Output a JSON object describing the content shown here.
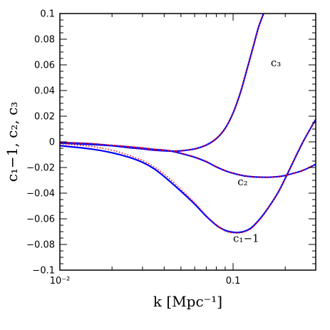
{
  "chart_data": {
    "type": "line",
    "xlabel": "k [Mpc⁻¹]",
    "ylabel": "c₁−1, c₂, c₃",
    "x_scale": "log",
    "xlim": [
      0.01,
      0.3
    ],
    "ylim": [
      -0.1,
      0.1
    ],
    "grid": false,
    "x_ticks": [
      {
        "value": 0.01,
        "label": "10⁻²"
      },
      {
        "value": 0.1,
        "label": "0.1"
      }
    ],
    "y_ticks": [
      {
        "value": 0.1,
        "label": "0.1"
      },
      {
        "value": 0.08,
        "label": "0.08"
      },
      {
        "value": 0.06,
        "label": "0.06"
      },
      {
        "value": 0.04,
        "label": "0.04"
      },
      {
        "value": 0.02,
        "label": "0.02"
      },
      {
        "value": 0,
        "label": "0"
      },
      {
        "value": -0.02,
        "label": "−0.02"
      },
      {
        "value": -0.04,
        "label": "−0.04"
      },
      {
        "value": -0.06,
        "label": "−0.06"
      },
      {
        "value": -0.08,
        "label": "−0.08"
      },
      {
        "value": -0.1,
        "label": "−0.1"
      }
    ],
    "series": [
      {
        "name": "c₃",
        "color": "#0000ff",
        "x": [
          0.01,
          0.015,
          0.02,
          0.025,
          0.03,
          0.035,
          0.04,
          0.045,
          0.05,
          0.06,
          0.07,
          0.08,
          0.09,
          0.1,
          0.11,
          0.12,
          0.13,
          0.14,
          0.15
        ],
        "y": [
          -0.0005,
          -0.0015,
          -0.003,
          -0.0045,
          -0.0055,
          -0.0065,
          -0.007,
          -0.0072,
          -0.007,
          -0.0055,
          -0.0025,
          0.0025,
          0.0105,
          0.0225,
          0.038,
          0.056,
          0.073,
          0.089,
          0.1
        ]
      },
      {
        "name": "c₂",
        "color": "#0000ff",
        "x": [
          0.01,
          0.015,
          0.02,
          0.025,
          0.03,
          0.035,
          0.04,
          0.045,
          0.05,
          0.06,
          0.07,
          0.08,
          0.09,
          0.1,
          0.12,
          0.15,
          0.18,
          0.2,
          0.25,
          0.3
        ],
        "y": [
          -0.001,
          -0.002,
          -0.003,
          -0.004,
          -0.005,
          -0.006,
          -0.0065,
          -0.0075,
          -0.009,
          -0.012,
          -0.0155,
          -0.0195,
          -0.0225,
          -0.0245,
          -0.0268,
          -0.0276,
          -0.0272,
          -0.0262,
          -0.0225,
          -0.0175
        ]
      },
      {
        "name": "c₁−1",
        "color": "#0000ff",
        "x": [
          0.01,
          0.015,
          0.02,
          0.025,
          0.03,
          0.035,
          0.04,
          0.045,
          0.05,
          0.06,
          0.07,
          0.08,
          0.09,
          0.1,
          0.11,
          0.12,
          0.13,
          0.15,
          0.18,
          0.2,
          0.25,
          0.3
        ],
        "y": [
          -0.003,
          -0.0055,
          -0.0085,
          -0.012,
          -0.016,
          -0.021,
          -0.027,
          -0.033,
          -0.0385,
          -0.0485,
          -0.058,
          -0.065,
          -0.069,
          -0.0705,
          -0.0705,
          -0.069,
          -0.066,
          -0.0565,
          -0.0405,
          -0.0285,
          -0.0015,
          0.0175
        ]
      },
      {
        "color": "#ff0000",
        "style": "dotted",
        "x": [
          0.01,
          0.015,
          0.02,
          0.025,
          0.03,
          0.035,
          0.04,
          0.045,
          0.05,
          0.06,
          0.07,
          0.08,
          0.09,
          0.1,
          0.11,
          0.12,
          0.13,
          0.15,
          0.18,
          0.2,
          0.25,
          0.3
        ],
        "y": [
          -0.0015,
          -0.0035,
          -0.0065,
          -0.0105,
          -0.0145,
          -0.0195,
          -0.025,
          -0.031,
          -0.037,
          -0.0475,
          -0.0575,
          -0.0645,
          -0.0695,
          -0.071,
          -0.071,
          -0.0695,
          -0.0665,
          -0.0568,
          -0.0405,
          -0.0285,
          -0.0015,
          0.0175
        ]
      },
      {
        "color": "#ff0000",
        "style": "dotted",
        "x": [
          0.01,
          0.015,
          0.02,
          0.025,
          0.03,
          0.035,
          0.04,
          0.045,
          0.05,
          0.06,
          0.07,
          0.08,
          0.09,
          0.1,
          0.12,
          0.15,
          0.18,
          0.2,
          0.25,
          0.3
        ],
        "y": [
          -0.0005,
          -0.0015,
          -0.0025,
          -0.0035,
          -0.0045,
          -0.0055,
          -0.0062,
          -0.0072,
          -0.0088,
          -0.0118,
          -0.0153,
          -0.0193,
          -0.0223,
          -0.0243,
          -0.0267,
          -0.0276,
          -0.0272,
          -0.0262,
          -0.0225,
          -0.0175
        ]
      },
      {
        "color": "#ff0000",
        "style": "dotted",
        "x": [
          0.01,
          0.015,
          0.02,
          0.025,
          0.03,
          0.035,
          0.04,
          0.045,
          0.05,
          0.06,
          0.07,
          0.08,
          0.09,
          0.1,
          0.11,
          0.12,
          0.13,
          0.14,
          0.15
        ],
        "y": [
          -0.0002,
          -0.0012,
          -0.0027,
          -0.0042,
          -0.0053,
          -0.0063,
          -0.0068,
          -0.0071,
          -0.0069,
          -0.0054,
          -0.0024,
          0.0026,
          0.0106,
          0.0226,
          0.0381,
          0.0561,
          0.0731,
          0.0891,
          0.1
        ]
      }
    ],
    "annotations": [
      {
        "text": "c₃",
        "x": 0.165,
        "y": 0.059
      },
      {
        "text": "c₂",
        "x": 0.106,
        "y": -0.034
      },
      {
        "text": "c₁−1",
        "x": 0.1,
        "y": -0.078
      }
    ]
  }
}
